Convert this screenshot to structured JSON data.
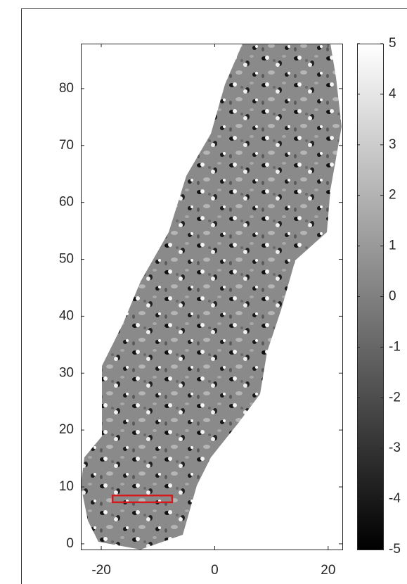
{
  "chart_data": {
    "type": "image",
    "colormap": "gray",
    "xlim": [
      -23.6,
      22.5
    ],
    "ylim": [
      -1,
      87.9
    ],
    "xticks": [
      -20,
      0,
      20
    ],
    "yticks": [
      0,
      10,
      20,
      30,
      40,
      50,
      60,
      70,
      80
    ],
    "clim": [
      -5,
      5
    ],
    "cticks": [
      -5,
      -4,
      -3,
      -2,
      -1,
      0,
      1,
      2,
      3,
      4,
      5
    ],
    "annotation": {
      "type": "rect",
      "x": [
        -18,
        -7.5
      ],
      "y": [
        7.3,
        8.5
      ],
      "color": "#d7191c"
    }
  }
}
